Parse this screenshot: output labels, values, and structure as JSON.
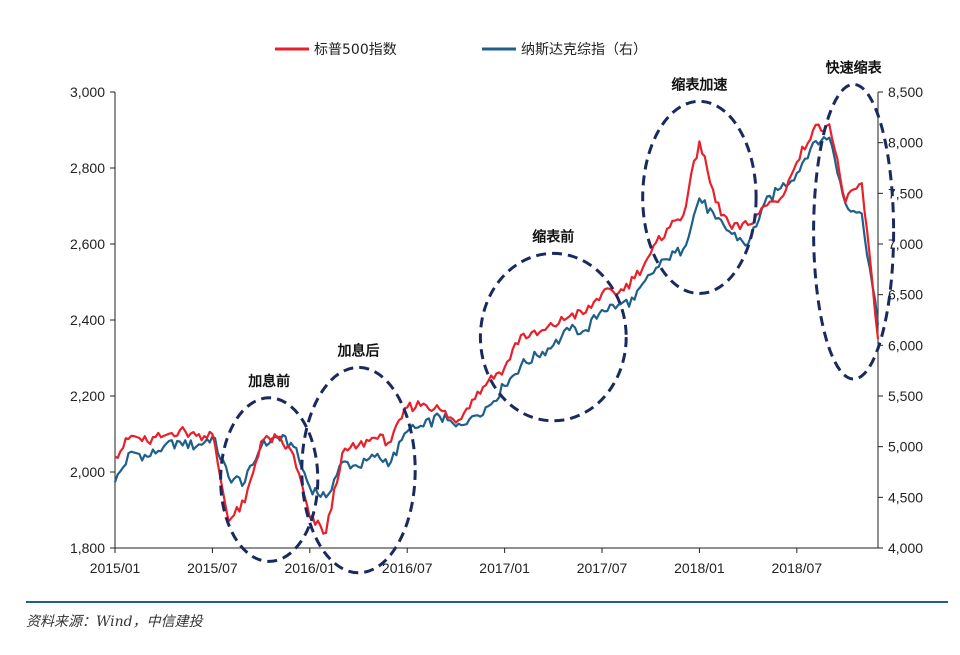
{
  "chart_data": {
    "type": "line",
    "title": "",
    "legend": {
      "placement": "top-center"
    },
    "x": [
      "2015/01",
      "2015/07",
      "2016/01",
      "2016/07",
      "2017/01",
      "2017/07",
      "2018/01",
      "2018/07"
    ],
    "xrange": [
      "2015/01",
      "2018/12"
    ],
    "y_left": {
      "min": 1800,
      "max": 3000,
      "ticks": [
        "1,800",
        "2,000",
        "2,200",
        "2,400",
        "2,600",
        "2,800",
        "3,000"
      ]
    },
    "y_right": {
      "min": 4000,
      "max": 8500,
      "ticks": [
        "4,000",
        "4,500",
        "5,000",
        "5,500",
        "6,000",
        "6,500",
        "7,000",
        "7,500",
        "8,000",
        "8,500"
      ]
    },
    "series": [
      {
        "name": "标普500指数",
        "axis": "left",
        "color": "#e8202a",
        "points": [
          [
            "2015/01",
            2040
          ],
          [
            "2015/02",
            2095
          ],
          [
            "2015/03",
            2080
          ],
          [
            "2015/04",
            2095
          ],
          [
            "2015/05",
            2110
          ],
          [
            "2015/06",
            2095
          ],
          [
            "2015/07",
            2100
          ],
          [
            "2015/08",
            1870
          ],
          [
            "2015/09",
            1920
          ],
          [
            "2015/10",
            2080
          ],
          [
            "2015/11",
            2090
          ],
          [
            "2015/12",
            2045
          ],
          [
            "2016/01",
            1880
          ],
          [
            "2016/02",
            1840
          ],
          [
            "2016/03",
            2050
          ],
          [
            "2016/04",
            2070
          ],
          [
            "2016/05",
            2090
          ],
          [
            "2016/06",
            2080
          ],
          [
            "2016/07",
            2170
          ],
          [
            "2016/08",
            2180
          ],
          [
            "2016/09",
            2165
          ],
          [
            "2016/10",
            2130
          ],
          [
            "2016/11",
            2190
          ],
          [
            "2016/12",
            2240
          ],
          [
            "2017/01",
            2275
          ],
          [
            "2017/02",
            2360
          ],
          [
            "2017/03",
            2360
          ],
          [
            "2017/04",
            2385
          ],
          [
            "2017/05",
            2410
          ],
          [
            "2017/06",
            2420
          ],
          [
            "2017/07",
            2470
          ],
          [
            "2017/08",
            2470
          ],
          [
            "2017/09",
            2510
          ],
          [
            "2017/10",
            2575
          ],
          [
            "2017/11",
            2640
          ],
          [
            "2017/12",
            2675
          ],
          [
            "2018/01",
            2870
          ],
          [
            "2018/02",
            2710
          ],
          [
            "2018/03",
            2640
          ],
          [
            "2018/04",
            2650
          ],
          [
            "2018/05",
            2700
          ],
          [
            "2018/06",
            2720
          ],
          [
            "2018/07",
            2815
          ],
          [
            "2018/08",
            2900
          ],
          [
            "2018/09",
            2915
          ],
          [
            "2018/10",
            2710
          ],
          [
            "2018/11",
            2760
          ],
          [
            "2018/12",
            2350
          ]
        ]
      },
      {
        "name": "纳斯达克综指（右）",
        "axis": "right",
        "color": "#1f5f8b",
        "points": [
          [
            "2015/01",
            4650
          ],
          [
            "2015/02",
            4950
          ],
          [
            "2015/03",
            4900
          ],
          [
            "2015/04",
            5000
          ],
          [
            "2015/05",
            5050
          ],
          [
            "2015/06",
            5000
          ],
          [
            "2015/07",
            5100
          ],
          [
            "2015/08",
            4700
          ],
          [
            "2015/09",
            4650
          ],
          [
            "2015/10",
            5000
          ],
          [
            "2015/11",
            5100
          ],
          [
            "2015/12",
            5000
          ],
          [
            "2016/01",
            4600
          ],
          [
            "2016/02",
            4500
          ],
          [
            "2016/03",
            4850
          ],
          [
            "2016/04",
            4800
          ],
          [
            "2016/05",
            4900
          ],
          [
            "2016/06",
            4850
          ],
          [
            "2016/07",
            5150
          ],
          [
            "2016/08",
            5200
          ],
          [
            "2016/09",
            5300
          ],
          [
            "2016/10",
            5200
          ],
          [
            "2016/11",
            5300
          ],
          [
            "2016/12",
            5400
          ],
          [
            "2017/01",
            5600
          ],
          [
            "2017/02",
            5800
          ],
          [
            "2017/03",
            5900
          ],
          [
            "2017/04",
            6000
          ],
          [
            "2017/05",
            6150
          ],
          [
            "2017/06",
            6150
          ],
          [
            "2017/07",
            6350
          ],
          [
            "2017/08",
            6400
          ],
          [
            "2017/09",
            6450
          ],
          [
            "2017/10",
            6700
          ],
          [
            "2017/11",
            6850
          ],
          [
            "2017/12",
            6950
          ],
          [
            "2018/01",
            7450
          ],
          [
            "2018/02",
            7250
          ],
          [
            "2018/03",
            7100
          ],
          [
            "2018/04",
            7000
          ],
          [
            "2018/05",
            7400
          ],
          [
            "2018/06",
            7550
          ],
          [
            "2018/07",
            7700
          ],
          [
            "2018/08",
            8000
          ],
          [
            "2018/09",
            8050
          ],
          [
            "2018/10",
            7400
          ],
          [
            "2018/11",
            7300
          ],
          [
            "2018/12",
            6200
          ]
        ]
      }
    ],
    "annotations": [
      {
        "text": "加息前",
        "start": "2015/08",
        "end": "2016/01"
      },
      {
        "text": "加息后",
        "start": "2016/01",
        "end": "2016/07"
      },
      {
        "text": "缩表前",
        "start": "2016/12",
        "end": "2017/08"
      },
      {
        "text": "缩表加速",
        "start": "2017/10",
        "end": "2018/04"
      },
      {
        "text": "快速缩表",
        "start": "2018/09",
        "end": "2018/12"
      }
    ]
  },
  "legend_labels": {
    "sp500": "标普500指数",
    "nasdaq": "纳斯达克综指（右）"
  },
  "source": "资料来源：Wind，中信建投"
}
